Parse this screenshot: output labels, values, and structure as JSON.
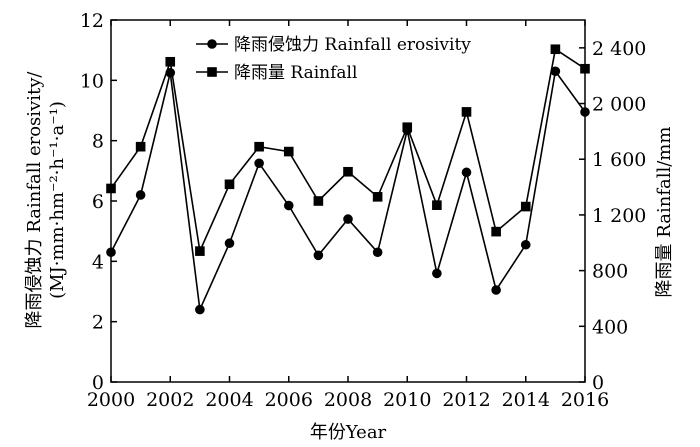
{
  "chart_data": {
    "type": "line",
    "title": "",
    "xlabel": "年份Year",
    "ylabel_left_line1": "降雨侵蚀力 Rainfall erosivity/",
    "ylabel_left_line2": "(MJ·mm·hm⁻²·h⁻¹·a⁻¹)",
    "ylabel_right": "降雨量 Rainfall/mm",
    "x": [
      2000,
      2001,
      2002,
      2003,
      2004,
      2005,
      2006,
      2007,
      2008,
      2009,
      2010,
      2011,
      2012,
      2013,
      2014,
      2015,
      2016
    ],
    "xlim": [
      2000,
      2016
    ],
    "x_ticks": [
      "2000",
      "2002",
      "2004",
      "2006",
      "2008",
      "2010",
      "2012",
      "2014",
      "2016"
    ],
    "ylim_left": [
      0,
      12
    ],
    "y_ticks_left": [
      "0",
      "2",
      "4",
      "6",
      "8",
      "10",
      "12"
    ],
    "ylim_right": [
      0,
      2600
    ],
    "y_ticks_right": [
      "0",
      "400",
      "800",
      "1 200",
      "1 600",
      "2 000",
      "2 400"
    ],
    "legend_position": "top-center",
    "series": [
      {
        "name": "降雨侵蚀力 Rainfall erosivity",
        "axis": "left",
        "marker": "circle",
        "values": [
          4.3,
          6.2,
          10.25,
          2.4,
          4.6,
          7.25,
          5.85,
          4.2,
          5.4,
          4.3,
          8.35,
          3.6,
          6.95,
          3.05,
          4.55,
          10.3,
          8.95
        ]
      },
      {
        "name": "降雨量 Rainfall",
        "axis": "right",
        "marker": "square",
        "values": [
          1390,
          1690,
          2300,
          940,
          1420,
          1690,
          1655,
          1300,
          1510,
          1330,
          1830,
          1270,
          1940,
          1080,
          1260,
          2390,
          2250
        ]
      }
    ]
  }
}
